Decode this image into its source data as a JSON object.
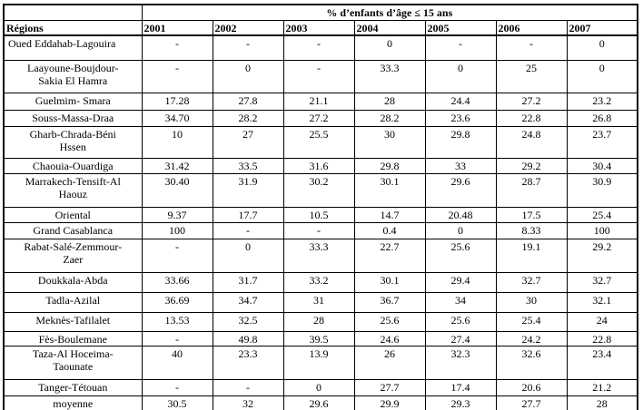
{
  "table": {
    "corner_label": "",
    "span_header": "% d’enfants d’âge ≤ 15 ans",
    "region_header": "Régions",
    "years": [
      "2001",
      "2002",
      "2003",
      "2004",
      "2005",
      "2006",
      "2007"
    ],
    "rows": [
      {
        "region": "Oued Eddahab-Lagouira",
        "values": [
          "-",
          "-",
          "-",
          "0",
          "-",
          "-",
          "0"
        ]
      },
      {
        "region": "Laayoune-Boujdour-\nSakia El Hamra",
        "values": [
          "-",
          "0",
          "-",
          "33.3",
          "0",
          "25",
          "0"
        ]
      },
      {
        "region": "Guelmim- Smara",
        "values": [
          "17.28",
          "27.8",
          "21.1",
          "28",
          "24.4",
          "27.2",
          "23.2"
        ]
      },
      {
        "region": "Souss-Massa-Draa",
        "values": [
          "34.70",
          "28.2",
          "27.2",
          "28.2",
          "23.6",
          "22.8",
          "26.8"
        ]
      },
      {
        "region": "Gharb-Chrada-Béni\nHssen",
        "values": [
          "10",
          "27",
          "25.5",
          "30",
          "29.8",
          "24.8",
          "23.7"
        ]
      },
      {
        "region": "Chaouia-Ouardiga",
        "values": [
          "31.42",
          "33.5",
          "31.6",
          "29.8",
          "33",
          "29.2",
          "30.4"
        ]
      },
      {
        "region": "Marrakech-Tensift-Al\nHaouz",
        "values": [
          "30.40",
          "31.9",
          "30.2",
          "30.1",
          "29.6",
          "28.7",
          "30.9"
        ]
      },
      {
        "region": "Oriental",
        "values": [
          "9.37",
          "17.7",
          "10.5",
          "14.7",
          "20.48",
          "17.5",
          "25.4"
        ]
      },
      {
        "region": "Grand Casablanca",
        "values": [
          "100",
          "-",
          "-",
          "0.4",
          "0",
          "8.33",
          "100"
        ]
      },
      {
        "region": "Rabat-Salé-Zemmour-\nZaer",
        "values": [
          "-",
          "0",
          "33.3",
          "22.7",
          "25.6",
          "19.1",
          "29.2"
        ]
      },
      {
        "region": "Doukkala-Abda",
        "values": [
          "33.66",
          "31.7",
          "33.2",
          "30.1",
          "29.4",
          "32.7",
          "32.7"
        ]
      },
      {
        "region": "Tadla-Azilal",
        "values": [
          "36.69",
          "34.7",
          "31",
          "36.7",
          "34",
          "30",
          "32.1"
        ]
      },
      {
        "region": "Meknès-Tafilalet",
        "values": [
          "13.53",
          "32.5",
          "28",
          "25.6",
          "25.6",
          "25.4",
          "24"
        ]
      },
      {
        "region": "Fès-Boulemane",
        "values": [
          "-",
          "49.8",
          "39.5",
          "24.6",
          "27.4",
          "24.2",
          "22.8"
        ]
      },
      {
        "region": "Taza-Al Hoceima-\nTaounate",
        "values": [
          "40",
          "23.3",
          "13.9",
          "26",
          "32.3",
          "32.6",
          "23.4"
        ]
      },
      {
        "region": "Tanger-Tétouan",
        "values": [
          "-",
          "-",
          "0",
          "27.7",
          "17.4",
          "20.6",
          "21.2"
        ]
      },
      {
        "region": "moyenne",
        "values": [
          "30.5",
          "32",
          "29.6",
          "29.9",
          "29.3",
          "27.7",
          "28"
        ]
      }
    ]
  }
}
